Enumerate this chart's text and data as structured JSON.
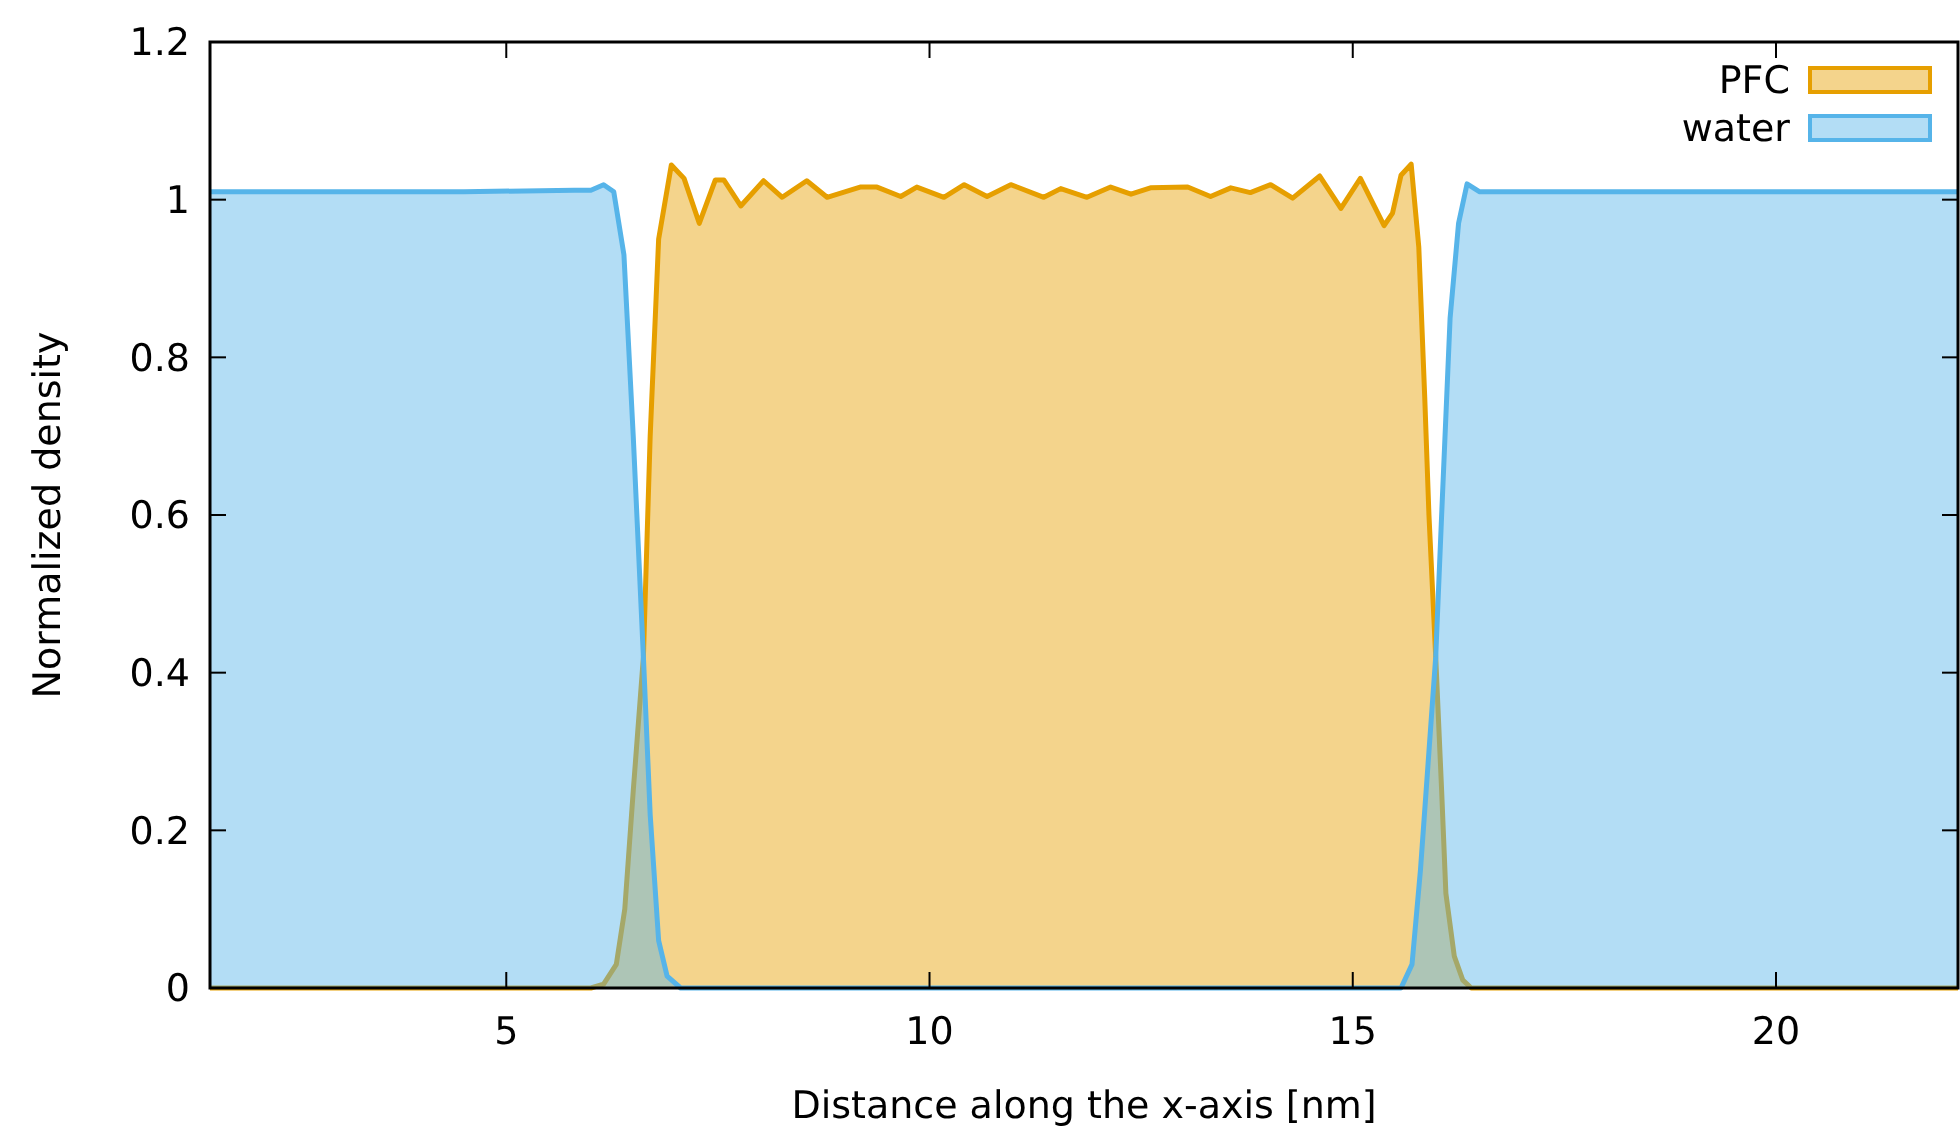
{
  "chart_data": {
    "type": "area",
    "xlabel": "Distance along the x-axis [nm]",
    "ylabel": "Normalized density",
    "xlim": [
      1.5,
      22.15
    ],
    "ylim": [
      0,
      1.2
    ],
    "xticks": [
      5,
      10,
      15,
      20
    ],
    "yticks": [
      0,
      0.2,
      0.4,
      0.6,
      0.8,
      1,
      1.2
    ],
    "grid": false,
    "legend": "top right",
    "series": [
      {
        "name": "PFC",
        "color": "#e69f00",
        "x": [
          1.5,
          6.0,
          6.15,
          6.3,
          6.4,
          6.5,
          6.62,
          6.7,
          6.8,
          6.95,
          7.1,
          7.28,
          7.47,
          7.57,
          7.77,
          8.04,
          8.26,
          8.55,
          8.79,
          9.18,
          9.38,
          9.66,
          9.85,
          10.17,
          10.41,
          10.68,
          10.96,
          11.35,
          11.55,
          11.86,
          12.14,
          12.38,
          12.61,
          13.05,
          13.32,
          13.56,
          13.79,
          14.03,
          14.29,
          14.61,
          14.86,
          15.09,
          15.37,
          15.47,
          15.57,
          15.69,
          15.78,
          15.85,
          15.9,
          15.98,
          16.05,
          16.1,
          16.2,
          16.3,
          16.4,
          22.15
        ],
        "values": [
          0,
          0,
          0.005,
          0.03,
          0.1,
          0.25,
          0.42,
          0.7,
          0.95,
          1.044,
          1.027,
          0.97,
          1.025,
          1.025,
          0.992,
          1.024,
          1.003,
          1.024,
          1.003,
          1.016,
          1.016,
          1.004,
          1.016,
          1.003,
          1.019,
          1.004,
          1.019,
          1.003,
          1.014,
          1.003,
          1.016,
          1.007,
          1.015,
          1.016,
          1.004,
          1.015,
          1.009,
          1.019,
          1.002,
          1.03,
          0.989,
          1.027,
          0.967,
          0.983,
          1.031,
          1.045,
          0.94,
          0.75,
          0.6,
          0.42,
          0.25,
          0.12,
          0.04,
          0.01,
          0,
          0
        ]
      },
      {
        "name": "water",
        "color": "#56b4e9",
        "x": [
          1.5,
          3,
          4.5,
          5.8,
          6.0,
          6.15,
          6.27,
          6.39,
          6.5,
          6.62,
          6.7,
          6.8,
          6.9,
          7.06,
          15.57,
          15.7,
          15.8,
          15.9,
          15.98,
          16.05,
          16.15,
          16.25,
          16.35,
          16.5,
          18,
          20,
          22.15
        ],
        "values": [
          1.01,
          1.01,
          1.01,
          1.012,
          1.012,
          1.019,
          1.01,
          0.93,
          0.7,
          0.42,
          0.22,
          0.06,
          0.015,
          0,
          0,
          0.03,
          0.15,
          0.3,
          0.42,
          0.6,
          0.85,
          0.97,
          1.02,
          1.01,
          1.01,
          1.01,
          1.01
        ]
      }
    ]
  }
}
